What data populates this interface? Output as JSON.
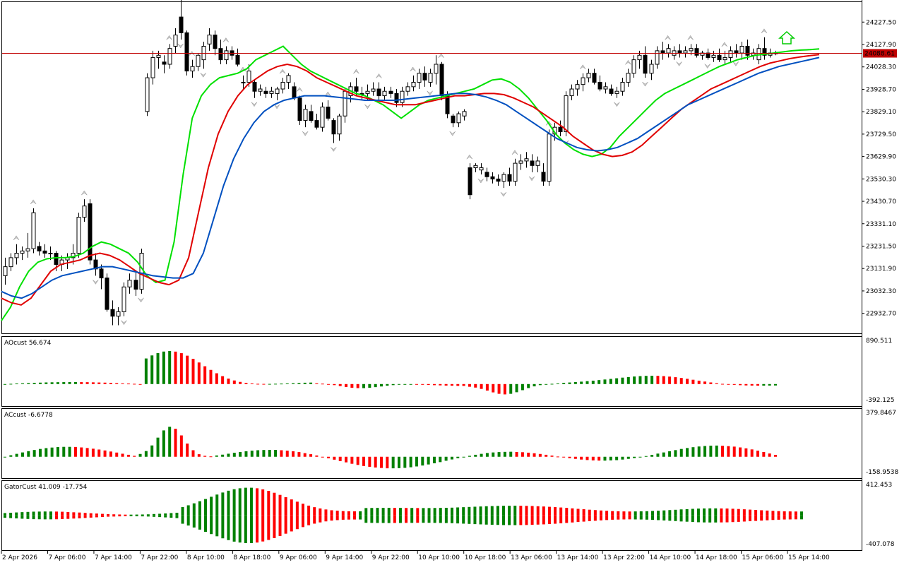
{
  "chart_data": [
    {
      "type": "candlestick",
      "name": "main",
      "ylim": [
        22850,
        24310
      ],
      "price_ticks": [
        "24227.50",
        "24127.90",
        "24028.30",
        "23928.70",
        "23829.10",
        "23729.50",
        "23629.90",
        "23530.30",
        "23430.70",
        "23331.10",
        "23231.50",
        "23131.90",
        "23032.30",
        "22932.70"
      ],
      "tick_values": [
        24227.5,
        24127.9,
        24028.3,
        23928.7,
        23829.1,
        23729.5,
        23629.9,
        23530.3,
        23430.7,
        23331.1,
        23231.5,
        23131.9,
        23032.3,
        22932.7
      ],
      "current_price": 24088.61,
      "current_price_label": "24088.61",
      "x_labels": [
        "2 Apr 2026",
        "7 Apr 06:00",
        "7 Apr 14:00",
        "7 Apr 22:00",
        "8 Apr 10:00",
        "8 Apr 18:00",
        "9 Apr 06:00",
        "9 Apr 14:00",
        "9 Apr 22:00",
        "10 Apr 10:00",
        "10 Apr 18:00",
        "13 Apr 06:00",
        "13 Apr 14:00",
        "13 Apr 22:00",
        "14 Apr 10:00",
        "14 Apr 18:00",
        "15 Apr 06:00",
        "15 Apr 14:00"
      ],
      "candles": [
        [
          23100,
          23180,
          23060,
          23140
        ],
        [
          23140,
          23200,
          23120,
          23180
        ],
        [
          23180,
          23240,
          23150,
          23200
        ],
        [
          23200,
          23230,
          23170,
          23210
        ],
        [
          23210,
          23290,
          23180,
          23220
        ],
        [
          23220,
          23400,
          23200,
          23380
        ],
        [
          23230,
          23250,
          23190,
          23210
        ],
        [
          23210,
          23240,
          23180,
          23200
        ],
        [
          23200,
          23230,
          23170,
          23200
        ],
        [
          23200,
          23210,
          23120,
          23150
        ],
        [
          23150,
          23190,
          23120,
          23170
        ],
        [
          23170,
          23200,
          23130,
          23180
        ],
        [
          23180,
          23240,
          23150,
          23200
        ],
        [
          23200,
          23380,
          23180,
          23360
        ],
        [
          23360,
          23440,
          23340,
          23410
        ],
        [
          23420,
          23440,
          23150,
          23170
        ],
        [
          23170,
          23200,
          23100,
          23130
        ],
        [
          23130,
          23150,
          23040,
          23090
        ],
        [
          23090,
          23110,
          22940,
          22950
        ],
        [
          22950,
          22990,
          22880,
          22920
        ],
        [
          22920,
          22960,
          22880,
          22940
        ],
        [
          22940,
          23070,
          22920,
          23050
        ],
        [
          23050,
          23110,
          23020,
          23080
        ],
        [
          23080,
          23120,
          23010,
          23040
        ],
        [
          23040,
          23220,
          23020,
          23200
        ],
        [
          23830,
          24000,
          23810,
          23980
        ],
        [
          23980,
          24100,
          23950,
          24070
        ],
        [
          24070,
          24100,
          24020,
          24080
        ],
        [
          24050,
          24080,
          24000,
          24040
        ],
        [
          24040,
          24130,
          24020,
          24110
        ],
        [
          24120,
          24200,
          24090,
          24170
        ],
        [
          24250,
          24350,
          24150,
          24180
        ],
        [
          24180,
          24190,
          23990,
          24010
        ],
        [
          24010,
          24060,
          23980,
          24030
        ],
        [
          24030,
          24090,
          24010,
          24080
        ],
        [
          24060,
          24140,
          24020,
          24120
        ],
        [
          24130,
          24200,
          24100,
          24170
        ],
        [
          24170,
          24190,
          24080,
          24110
        ],
        [
          24110,
          24150,
          24040,
          24060
        ],
        [
          24060,
          24120,
          24040,
          24100
        ],
        [
          24100,
          24120,
          24060,
          24080
        ],
        [
          24080,
          24110,
          24030,
          24040
        ],
        [
          23960,
          23990,
          23930,
          23960
        ],
        [
          23960,
          24040,
          23940,
          24010
        ],
        [
          23960,
          23970,
          23890,
          23920
        ],
        [
          23920,
          23950,
          23900,
          23930
        ],
        [
          23920,
          23940,
          23890,
          23910
        ],
        [
          23910,
          23940,
          23890,
          23920
        ],
        [
          23910,
          23940,
          23880,
          23930
        ],
        [
          23930,
          23980,
          23910,
          23960
        ],
        [
          23960,
          24000,
          23930,
          23990
        ],
        [
          23940,
          23960,
          23880,
          23890
        ],
        [
          23890,
          23900,
          23770,
          23790
        ],
        [
          23790,
          23860,
          23760,
          23840
        ],
        [
          23830,
          23860,
          23780,
          23790
        ],
        [
          23790,
          23820,
          23750,
          23760
        ],
        [
          23760,
          23870,
          23740,
          23850
        ],
        [
          23850,
          23880,
          23790,
          23800
        ],
        [
          23790,
          23800,
          23690,
          23730
        ],
        [
          23730,
          23820,
          23700,
          23810
        ],
        [
          23810,
          23930,
          23780,
          23920
        ],
        [
          23900,
          23960,
          23870,
          23940
        ],
        [
          23940,
          23980,
          23900,
          23920
        ],
        [
          23910,
          23940,
          23880,
          23910
        ],
        [
          23910,
          23950,
          23880,
          23920
        ],
        [
          23920,
          23960,
          23900,
          23930
        ],
        [
          23930,
          23960,
          23880,
          23900
        ],
        [
          23900,
          23940,
          23880,
          23920
        ],
        [
          23920,
          23940,
          23890,
          23910
        ],
        [
          23910,
          23930,
          23850,
          23870
        ],
        [
          23870,
          23940,
          23850,
          23920
        ],
        [
          23920,
          23960,
          23900,
          23940
        ],
        [
          23940,
          23990,
          23920,
          23960
        ],
        [
          23960,
          24020,
          23930,
          24000
        ],
        [
          24000,
          24030,
          23940,
          23970
        ],
        [
          23960,
          24020,
          23940,
          24000
        ],
        [
          24000,
          24080,
          23950,
          24040
        ],
        [
          24040,
          24050,
          23880,
          23900
        ],
        [
          23900,
          23920,
          23800,
          23820
        ],
        [
          23810,
          23820,
          23760,
          23780
        ],
        [
          23780,
          23830,
          23760,
          23820
        ],
        [
          23810,
          23840,
          23790,
          23830
        ],
        [
          23580,
          23600,
          23440,
          23460
        ],
        [
          23580,
          23600,
          23560,
          23590
        ],
        [
          23570,
          23600,
          23550,
          23580
        ],
        [
          23560,
          23580,
          23520,
          23540
        ],
        [
          23540,
          23560,
          23510,
          23530
        ],
        [
          23530,
          23550,
          23500,
          23520
        ],
        [
          23520,
          23560,
          23490,
          23550
        ],
        [
          23550,
          23580,
          23500,
          23520
        ],
        [
          23520,
          23620,
          23500,
          23600
        ],
        [
          23600,
          23640,
          23570,
          23610
        ],
        [
          23610,
          23650,
          23580,
          23620
        ],
        [
          23610,
          23640,
          23560,
          23590
        ],
        [
          23590,
          23630,
          23560,
          23610
        ],
        [
          23560,
          23600,
          23500,
          23520
        ],
        [
          23520,
          23750,
          23500,
          23730
        ],
        [
          23730,
          23780,
          23700,
          23760
        ],
        [
          23760,
          23790,
          23720,
          23740
        ],
        [
          23740,
          23920,
          23720,
          23900
        ],
        [
          23900,
          23950,
          23880,
          23930
        ],
        [
          23930,
          23970,
          23900,
          23950
        ],
        [
          23950,
          24000,
          23920,
          23980
        ],
        [
          23980,
          24020,
          23960,
          24000
        ],
        [
          24000,
          24020,
          23950,
          23960
        ],
        [
          23960,
          23990,
          23920,
          23930
        ],
        [
          23930,
          23960,
          23910,
          23940
        ],
        [
          23930,
          23950,
          23900,
          23910
        ],
        [
          23910,
          23940,
          23890,
          23920
        ],
        [
          23920,
          23980,
          23900,
          23960
        ],
        [
          23960,
          24020,
          23940,
          24000
        ],
        [
          24000,
          24080,
          23980,
          24060
        ],
        [
          24060,
          24100,
          24020,
          24080
        ],
        [
          24080,
          24120,
          23980,
          24000
        ],
        [
          24000,
          24060,
          23970,
          24040
        ],
        [
          24040,
          24120,
          24020,
          24100
        ],
        [
          24100,
          24140,
          24060,
          24090
        ],
        [
          24090,
          24130,
          24070,
          24110
        ],
        [
          24080,
          24120,
          24060,
          24100
        ],
        [
          24100,
          24130,
          24070,
          24090
        ],
        [
          24090,
          24120,
          24070,
          24100
        ],
        [
          24100,
          24130,
          24080,
          24110
        ],
        [
          24110,
          24130,
          24070,
          24080
        ],
        [
          24080,
          24100,
          24060,
          24090
        ],
        [
          24090,
          24110,
          24060,
          24070
        ],
        [
          24070,
          24100,
          24050,
          24080
        ],
        [
          24080,
          24110,
          24050,
          24060
        ],
        [
          24060,
          24100,
          24040,
          24070
        ],
        [
          24070,
          24120,
          24050,
          24100
        ],
        [
          24100,
          24130,
          24070,
          24090
        ],
        [
          24090,
          24140,
          24060,
          24120
        ],
        [
          24120,
          24150,
          24060,
          24080
        ],
        [
          24080,
          24110,
          24060,
          24090
        ],
        [
          24060,
          24130,
          24040,
          24110
        ],
        [
          24110,
          24160,
          24060,
          24080
        ],
        [
          24080,
          24110,
          24070,
          24090
        ],
        [
          24090,
          24100,
          24080,
          24089
        ]
      ],
      "lines": [
        {
          "color": "#00e000",
          "values": [
            22900,
            22960,
            23050,
            23120,
            23160,
            23175,
            23180,
            23180,
            23185,
            23200,
            23230,
            23250,
            23240,
            23220,
            23200,
            23160,
            23100,
            23070,
            23080,
            23250,
            23550,
            23800,
            23900,
            23950,
            23980,
            23990,
            24000,
            24020,
            24060,
            24080,
            24100,
            24120,
            24080,
            24040,
            24010,
            23990,
            23970,
            23950,
            23930,
            23910,
            23900,
            23880,
            23860,
            23830,
            23800,
            23830,
            23860,
            23880,
            23890,
            23900,
            23910,
            23920,
            23930,
            23950,
            23970,
            23975,
            23960,
            23930,
            23890,
            23840,
            23790,
            23730,
            23690,
            23660,
            23640,
            23630,
            23640,
            23670,
            23720,
            23760,
            23800,
            23840,
            23880,
            23910,
            23930,
            23950,
            23970,
            23990,
            24010,
            24030,
            24045,
            24060,
            24070,
            24080,
            24085,
            24090,
            24095,
            24100,
            24103,
            24105,
            24108
          ]
        },
        {
          "color": "#e00000",
          "values": [
            23000,
            22980,
            22970,
            23000,
            23060,
            23120,
            23150,
            23160,
            23170,
            23190,
            23200,
            23190,
            23170,
            23140,
            23110,
            23090,
            23070,
            23060,
            23080,
            23180,
            23380,
            23580,
            23730,
            23830,
            23900,
            23950,
            23980,
            24010,
            24030,
            24040,
            24030,
            24010,
            23980,
            23960,
            23940,
            23920,
            23900,
            23890,
            23880,
            23870,
            23860,
            23860,
            23860,
            23870,
            23880,
            23890,
            23900,
            23900,
            23905,
            23910,
            23910,
            23905,
            23890,
            23870,
            23850,
            23820,
            23790,
            23760,
            23720,
            23690,
            23660,
            23640,
            23630,
            23635,
            23650,
            23680,
            23720,
            23760,
            23800,
            23840,
            23870,
            23900,
            23930,
            23950,
            23970,
            23990,
            24010,
            24030,
            24045,
            24055,
            24065,
            24072,
            24078,
            24083
          ]
        },
        {
          "color": "#0050c0",
          "values": [
            23030,
            23010,
            23000,
            23020,
            23050,
            23080,
            23100,
            23110,
            23120,
            23130,
            23140,
            23140,
            23130,
            23120,
            23110,
            23100,
            23095,
            23090,
            23090,
            23110,
            23200,
            23350,
            23500,
            23620,
            23710,
            23780,
            23830,
            23860,
            23880,
            23890,
            23900,
            23900,
            23900,
            23895,
            23890,
            23885,
            23880,
            23880,
            23880,
            23880,
            23885,
            23890,
            23895,
            23900,
            23905,
            23910,
            23910,
            23905,
            23895,
            23880,
            23860,
            23830,
            23800,
            23770,
            23740,
            23710,
            23690,
            23670,
            23660,
            23655,
            23660,
            23670,
            23690,
            23710,
            23740,
            23770,
            23800,
            23830,
            23860,
            23880,
            23900,
            23920,
            23940,
            23960,
            23980,
            24000,
            24015,
            24030,
            24040,
            24050,
            24060,
            24070
          ]
        }
      ]
    },
    {
      "type": "bar",
      "name": "AO",
      "title": "AOcust 56.674",
      "y_labels": [
        "890.511",
        "-392.125"
      ],
      "ylim": [
        -392.125,
        890.511
      ]
    },
    {
      "type": "bar",
      "name": "AC",
      "title": "ACcust -6.6778",
      "y_labels": [
        "379.8467",
        "-158.9538"
      ],
      "ylim": [
        -158.9538,
        379.8467
      ]
    },
    {
      "type": "bar",
      "name": "Gator",
      "title": "GatorCust 41.009 -17.754",
      "y_labels": [
        "412.453",
        "-407.078"
      ],
      "ylim": [
        -407.078,
        412.453
      ]
    }
  ],
  "colors": {
    "up": "#008000",
    "down": "#ff0000",
    "price_line": "#c00000",
    "grid": "#000000"
  }
}
